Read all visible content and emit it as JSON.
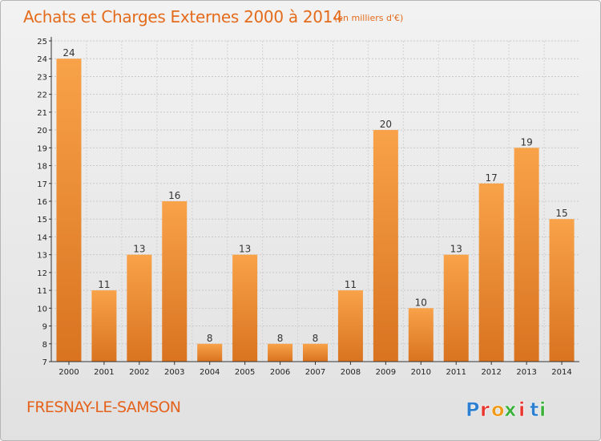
{
  "header": {
    "title": "Achats et Charges Externes 2000 à 2014",
    "unit": "(en milliers d'€)"
  },
  "footer": {
    "commune": "FRESNAY-LE-SAMSON",
    "logo_text": "Proxiti"
  },
  "colors": {
    "bar_light": "#f8a249",
    "bar_dark": "#d97320",
    "title": "#e46b1c",
    "logo_letters": [
      "#2f7fd0",
      "#e8372f",
      "#f09a1a",
      "#3bb13a",
      "#e8372f",
      "#2f7fd0",
      "#3bb13a"
    ]
  },
  "chart_data": {
    "type": "bar",
    "title": "Achats et Charges Externes 2000 à 2014",
    "xlabel": "",
    "ylabel": "",
    "categories": [
      "2000",
      "2001",
      "2002",
      "2003",
      "2004",
      "2005",
      "2006",
      "2007",
      "2008",
      "2009",
      "2010",
      "2011",
      "2012",
      "2013",
      "2014"
    ],
    "values": [
      24,
      11,
      13,
      16,
      8,
      13,
      8,
      8,
      11,
      20,
      10,
      13,
      17,
      19,
      15
    ],
    "ylim": [
      7,
      25
    ],
    "yticks": [
      7,
      8,
      9,
      10,
      11,
      12,
      13,
      14,
      15,
      16,
      17,
      18,
      19,
      20,
      21,
      22,
      23,
      24,
      25
    ],
    "ytick_labels": [
      "7",
      "8",
      "9",
      "10",
      "11",
      "12",
      "13",
      "14",
      "15",
      "16",
      "17",
      "18",
      "19",
      "20",
      "21",
      "22",
      "23",
      "24",
      "25"
    ],
    "data_labels": [
      "24",
      "11",
      "13",
      "16",
      "8",
      "13",
      "8",
      "8",
      "11",
      "20",
      "10",
      "13",
      "17",
      "19",
      "15"
    ],
    "grid": true,
    "legend": "none"
  }
}
